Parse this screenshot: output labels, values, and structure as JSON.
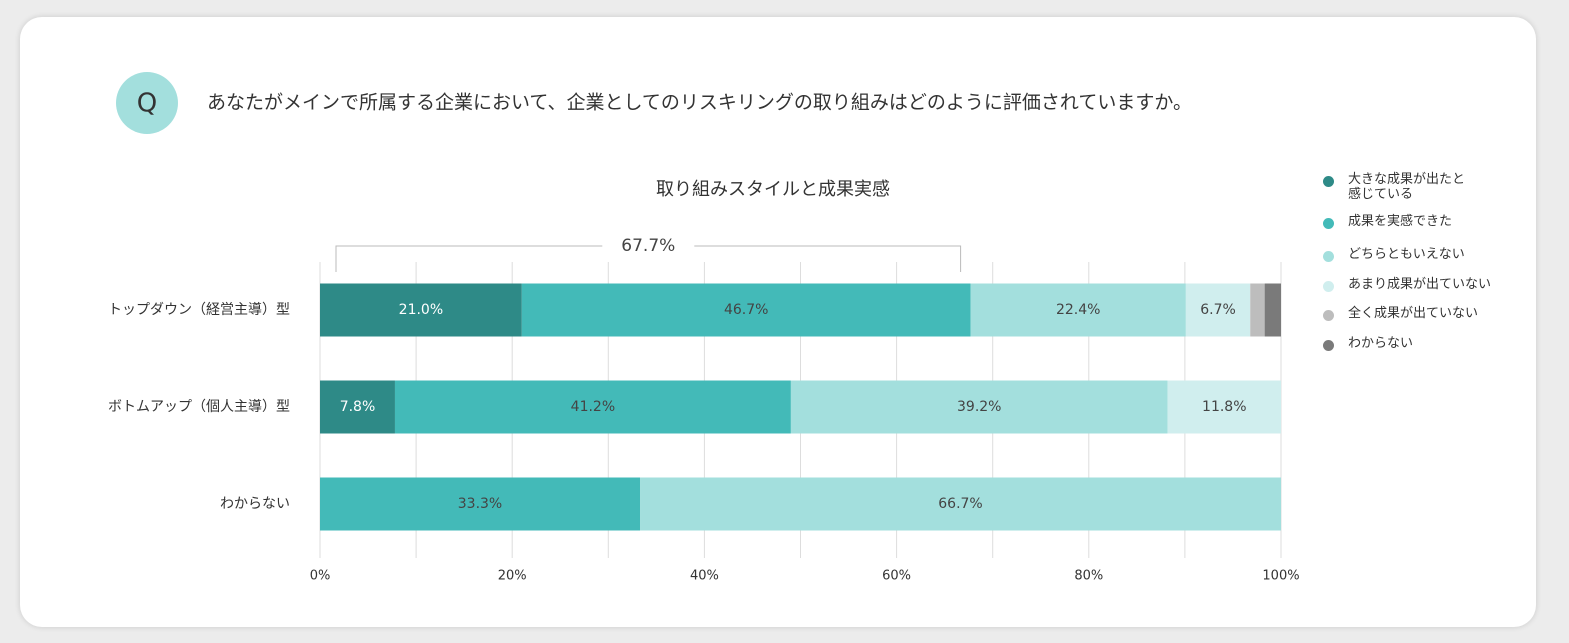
{
  "question": {
    "badge": "Q",
    "text": "あなたがメインで所属する企業において、企業としてのリスキリングの取り組みはどのように評価されていますか。"
  },
  "chart_data": {
    "type": "stacked-bar-horizontal",
    "title": "取り組みスタイルと成果実感",
    "categories": [
      "トップダウン（経営主導）型",
      "ボトムアップ（個人主導）型",
      "わからない"
    ],
    "series": [
      {
        "name": "大きな成果が出たと感じている",
        "color": "#2e8a87",
        "values": [
          21.0,
          7.8,
          null
        ],
        "value_labels": [
          "21.0%",
          "7.8%",
          null
        ]
      },
      {
        "name": "成果を実感できた",
        "color": "#43bab8",
        "values": [
          46.7,
          41.2,
          33.3
        ],
        "value_labels": [
          "46.7%",
          "41.2%",
          "33.3%"
        ]
      },
      {
        "name": "どちらともいえない",
        "color": "#a3dfdd",
        "values": [
          22.4,
          39.2,
          66.7
        ],
        "value_labels": [
          "22.4%",
          "39.2%",
          "66.7%"
        ]
      },
      {
        "name": "あまり成果が出ていない",
        "color": "#d0eeee",
        "values": [
          6.7,
          11.8,
          null
        ],
        "value_labels": [
          "6.7%",
          "11.8%",
          null
        ]
      },
      {
        "name": "全く成果が出ていない",
        "color": "#bdbdbd",
        "values": [
          1.5,
          null,
          null
        ],
        "value_labels": [
          null,
          null,
          null
        ]
      },
      {
        "name": "わからない",
        "color": "#7a7a7a",
        "values": [
          1.7,
          null,
          null
        ],
        "value_labels": [
          null,
          null,
          null
        ]
      }
    ],
    "xlim": [
      0,
      100
    ],
    "xticks": [
      {
        "value": 0,
        "label": "0%"
      },
      {
        "value": 20,
        "label": "20%"
      },
      {
        "value": 40,
        "label": "40%"
      },
      {
        "value": 60,
        "label": "60%"
      },
      {
        "value": 80,
        "label": "80%"
      },
      {
        "value": 100,
        "label": "100%"
      }
    ],
    "xgrid": [
      0,
      10,
      20,
      30,
      40,
      50,
      60,
      70,
      80,
      90,
      100
    ],
    "annotations": [
      {
        "label": "67.7%",
        "value": 67.7
      }
    ],
    "legend": "right"
  }
}
